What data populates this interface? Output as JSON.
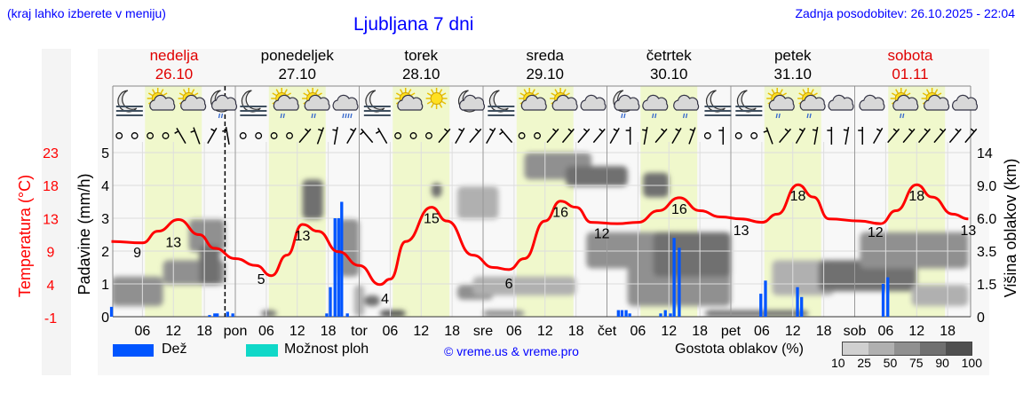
{
  "header": {
    "location_hint": "(kraj lahko izberete v meniju)",
    "title": "Ljubljana 7 dni",
    "last_update": "Zadnja posodobitev: 26.10.2025 - 22:04"
  },
  "days": [
    {
      "name": "nedelja",
      "date": "26.10",
      "weekend": true
    },
    {
      "name": "ponedeljek",
      "date": "27.10",
      "weekend": false
    },
    {
      "name": "torek",
      "date": "28.10",
      "weekend": false
    },
    {
      "name": "sreda",
      "date": "29.10",
      "weekend": false
    },
    {
      "name": "četrtek",
      "date": "30.10",
      "weekend": false
    },
    {
      "name": "petek",
      "date": "31.10",
      "weekend": false
    },
    {
      "name": "sobota",
      "date": "01.11",
      "weekend": true
    }
  ],
  "icons": [
    "moon-fog",
    "sun-cloud",
    "sun-cloud",
    "moon-cloud-rain",
    "moon-fog",
    "sun-cloud-rain",
    "sun-cloud-rain",
    "cloud-heavy-rain",
    "moon-fog",
    "sun-cloud",
    "sun",
    "moon-cloud",
    "moon-fog",
    "sun-cloud",
    "sun-cloud",
    "cloud",
    "moon-cloud-rain",
    "cloud-rain",
    "cloud-rain",
    "moon-fog",
    "moon-fog",
    "sun-cloud-rain",
    "sun-cloud-rain",
    "cloud",
    "cloud",
    "sun-cloud-rain",
    "sun-cloud",
    "cloud"
  ],
  "wind": [
    "calm",
    "calm",
    "calm",
    "calm",
    120,
    110,
    60,
    100,
    "calm",
    "calm",
    "calm",
    "calm",
    50,
    70,
    80,
    60,
    130,
    120,
    "calm",
    "calm",
    "calm",
    50,
    60,
    50,
    60,
    130,
    "calm",
    "calm",
    50,
    50,
    50,
    50,
    60,
    90,
    80,
    50,
    60,
    70,
    "calm",
    90,
    "calm",
    "calm",
    110,
    50,
    60,
    80,
    90,
    80,
    90,
    60,
    50,
    50,
    50,
    50,
    50,
    50
  ],
  "chart_data": {
    "type": "line",
    "x_unit": "hours from 26.10 00:00",
    "x_range_hours": [
      0,
      166
    ],
    "x_tick_labels": [
      "06",
      "12",
      "18",
      "pon",
      "06",
      "12",
      "18",
      "tor",
      "06",
      "12",
      "18",
      "sre",
      "06",
      "12",
      "18",
      "čet",
      "06",
      "12",
      "18",
      "pet",
      "06",
      "12",
      "18",
      "sob",
      "06",
      "12",
      "18"
    ],
    "current_time_hours": 22,
    "temperature": {
      "ylabel": "Temperatura (°C)",
      "color": "#ff0000",
      "ticks": [
        "23",
        "18",
        "13",
        "9",
        "4",
        "-1"
      ],
      "ylim": [
        -1,
        23
      ],
      "points": [
        [
          0,
          10
        ],
        [
          6,
          9.8
        ],
        [
          9,
          11.5
        ],
        [
          13,
          13.2
        ],
        [
          17,
          11
        ],
        [
          20,
          9
        ],
        [
          24,
          7.5
        ],
        [
          28,
          6.5
        ],
        [
          31,
          5
        ],
        [
          34,
          8
        ],
        [
          37,
          12.5
        ],
        [
          40,
          11.5
        ],
        [
          44,
          8.5
        ],
        [
          48,
          6.5
        ],
        [
          52,
          3.7
        ],
        [
          54,
          4.5
        ],
        [
          57,
          10
        ],
        [
          62,
          15
        ],
        [
          65,
          13
        ],
        [
          70,
          8
        ],
        [
          74,
          6.2
        ],
        [
          77,
          5.9
        ],
        [
          80,
          7.5
        ],
        [
          84,
          13
        ],
        [
          87,
          15.9
        ],
        [
          90,
          15
        ],
        [
          93,
          12.8
        ],
        [
          98,
          12.6
        ],
        [
          102,
          12.8
        ],
        [
          106,
          14.5
        ],
        [
          110,
          16.4
        ],
        [
          114,
          14.5
        ],
        [
          118,
          13.6
        ],
        [
          122,
          13.3
        ],
        [
          126,
          12.8
        ],
        [
          129,
          14
        ],
        [
          133,
          18.3
        ],
        [
          136,
          16.5
        ],
        [
          139,
          13.3
        ],
        [
          145,
          13
        ],
        [
          149,
          12.6
        ],
        [
          152,
          14.5
        ],
        [
          156,
          18.3
        ],
        [
          159,
          16.5
        ],
        [
          163,
          14
        ],
        [
          166,
          13.3
        ]
      ],
      "labels": [
        [
          5,
          "9"
        ],
        [
          12,
          "13"
        ],
        [
          29,
          "5"
        ],
        [
          37,
          "13"
        ],
        [
          53,
          "4"
        ],
        [
          62,
          "15"
        ],
        [
          77,
          "6"
        ],
        [
          87,
          "16"
        ],
        [
          95,
          "12"
        ],
        [
          110,
          "16"
        ],
        [
          122,
          "13"
        ],
        [
          133,
          "18"
        ],
        [
          148,
          "12"
        ],
        [
          156,
          "18"
        ],
        [
          166,
          "13"
        ]
      ]
    },
    "precipitation": {
      "ylabel": "Padavine (mm/h)",
      "ticks": [
        "5",
        "4",
        "3",
        "2",
        "1",
        "0"
      ],
      "ylim": [
        0,
        5
      ],
      "rain_color": "#0055ff",
      "showers_color": "#10d8c8",
      "rain": [
        [
          0,
          0.3
        ],
        [
          19,
          0.05
        ],
        [
          20,
          0.1
        ],
        [
          20.5,
          0.1
        ],
        [
          22.5,
          0.15
        ],
        [
          23.5,
          0.1
        ],
        [
          41.7,
          0.1
        ],
        [
          42.4,
          0.9
        ],
        [
          43.3,
          3.0
        ],
        [
          44,
          3.0
        ],
        [
          44.6,
          3.5
        ],
        [
          45.7,
          0.1
        ],
        [
          98.2,
          0.2
        ],
        [
          98.9,
          0.2
        ],
        [
          99.7,
          0.2
        ],
        [
          100.4,
          0.1
        ],
        [
          106.4,
          0.1
        ],
        [
          107.3,
          0.2
        ],
        [
          108.3,
          0.1
        ],
        [
          109,
          2.4
        ],
        [
          110,
          2.1
        ],
        [
          125.8,
          0.7
        ],
        [
          126.7,
          1.1
        ],
        [
          132.9,
          0.9
        ],
        [
          133.7,
          0.6
        ],
        [
          149.5,
          1.0
        ],
        [
          150.4,
          1.2
        ]
      ]
    },
    "cloud_height": {
      "ylabel": "Višina oblakov (km)",
      "ticks": [
        "14",
        "9.0",
        "6.0",
        "3.5",
        "1.5",
        "0"
      ],
      "scale_km": [
        0,
        1.5,
        3.5,
        6.0,
        9.0,
        14
      ],
      "blobs": [
        [
          0,
          10,
          0.5,
          2,
          50
        ],
        [
          10,
          22,
          1.5,
          3,
          60
        ],
        [
          15,
          22,
          3.5,
          6,
          60
        ],
        [
          17,
          21,
          1.5,
          4,
          85
        ],
        [
          29,
          32,
          0,
          0.3,
          75
        ],
        [
          37,
          41,
          6,
          10,
          85
        ],
        [
          44,
          48,
          2,
          6,
          50
        ],
        [
          47,
          49,
          0,
          1.5,
          40
        ],
        [
          49,
          52,
          0.5,
          1,
          85
        ],
        [
          52,
          57,
          0,
          0.3,
          90
        ],
        [
          62,
          64,
          8,
          9.5,
          75
        ],
        [
          67,
          74,
          0.8,
          1.5,
          50
        ],
        [
          67,
          75,
          6,
          9,
          30
        ],
        [
          70,
          90,
          1,
          2,
          40
        ],
        [
          72,
          80,
          0,
          0.3,
          50
        ],
        [
          80,
          93,
          10,
          14,
          60
        ],
        [
          88,
          100,
          9,
          12,
          85
        ],
        [
          92,
          110,
          2.5,
          5,
          60
        ],
        [
          100,
          120,
          0.5,
          3.5,
          60
        ],
        [
          103,
          108,
          8,
          11,
          75
        ],
        [
          105,
          120,
          2,
          5,
          75
        ],
        [
          115,
          135,
          0,
          0.3,
          75
        ],
        [
          128,
          140,
          1,
          3,
          40
        ],
        [
          137,
          156,
          1.2,
          3,
          75
        ],
        [
          145,
          166,
          2.5,
          5,
          60
        ],
        [
          155,
          166,
          0.5,
          1.5,
          30
        ]
      ]
    }
  },
  "legend": {
    "rain_label": "Dež",
    "showers_label": "Možnost ploh",
    "copyright": "© vreme.us & vreme.pro",
    "density_label": "Gostota oblakov (%)",
    "density_ticks": [
      "10",
      "25",
      "50",
      "75",
      "90",
      "100"
    ],
    "density_colors": [
      "#d0d0d0",
      "#b0b0b0",
      "#909090",
      "#707070",
      "#505050"
    ]
  }
}
